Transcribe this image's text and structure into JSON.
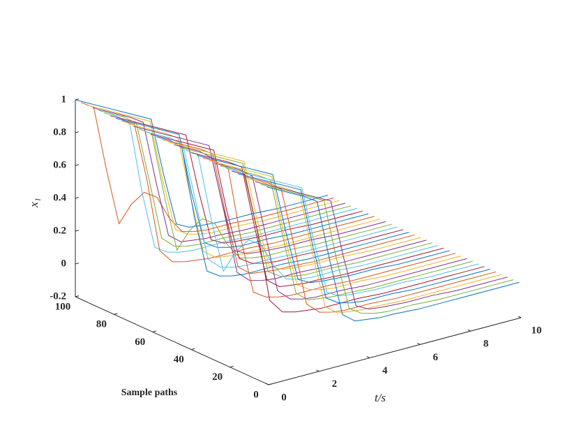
{
  "chart_data": {
    "type": "waterfall3d",
    "xlabel": "t/s",
    "ylabel": "Sample paths",
    "zlabel": "x₁",
    "xlim": [
      0,
      10
    ],
    "xticks": [
      0,
      2,
      4,
      6,
      8,
      10
    ],
    "ylim": [
      0,
      100
    ],
    "yticks": [
      0,
      20,
      40,
      60,
      80,
      100
    ],
    "zlim": [
      -0.2,
      1
    ],
    "zticks": [
      -0.2,
      0,
      0.2,
      0.4,
      0.6,
      0.8,
      1
    ],
    "x": [
      0,
      0.5,
      1,
      1.5,
      2,
      2.5,
      3,
      3.5,
      4,
      4.5,
      5,
      6,
      7,
      8,
      9,
      10
    ],
    "series": [
      {
        "depth": 100,
        "color": "#0072BD",
        "values": [
          1,
          0.96,
          0.92,
          0.88,
          0.84,
          0.8,
          0.76,
          0.4,
          0.08,
          0.04,
          0.03,
          0.02,
          0.02,
          0.01,
          0.01,
          0.01
        ]
      },
      {
        "depth": 97,
        "color": "#D95319",
        "values": [
          1,
          0.95,
          0.55,
          0.2,
          0.3,
          0.35,
          0.3,
          0.15,
          0.05,
          0.03,
          0.02,
          0.02,
          0.01,
          0.01,
          0.01,
          0.01
        ]
      },
      {
        "depth": 94,
        "color": "#EDB120",
        "values": [
          1,
          0.96,
          0.92,
          0.88,
          0.84,
          0.8,
          0.42,
          0.1,
          0.05,
          0.03,
          0.02,
          0.02,
          0.01,
          0.01,
          0.01,
          0.01
        ]
      },
      {
        "depth": 91,
        "color": "#7E2F8E",
        "values": [
          1,
          0.96,
          0.92,
          0.88,
          0.83,
          0.45,
          0.1,
          0.04,
          0.03,
          0.02,
          0.02,
          0.01,
          0.01,
          0.01,
          0.01,
          0.01
        ]
      },
      {
        "depth": 88,
        "color": "#77AC30",
        "values": [
          1,
          0.96,
          0.92,
          0.86,
          0.5,
          0.12,
          0.05,
          0.03,
          0.02,
          0.02,
          0.02,
          0.01,
          0.01,
          0.01,
          0.01,
          0.01
        ]
      },
      {
        "depth": 85,
        "color": "#4DBEEE",
        "values": [
          1,
          0.96,
          0.9,
          0.45,
          0.1,
          0.05,
          0.03,
          0.02,
          0.02,
          0.02,
          0.02,
          0.01,
          0.01,
          0.01,
          0.01,
          0.01
        ]
      },
      {
        "depth": 82,
        "color": "#A2142F",
        "values": [
          1,
          0.96,
          0.92,
          0.88,
          0.84,
          0.8,
          0.76,
          0.4,
          0.08,
          0.04,
          0.03,
          0.02,
          0.02,
          0.01,
          0.01,
          0.01
        ]
      },
      {
        "depth": 79,
        "color": "#0072BD",
        "values": [
          1,
          0.96,
          0.92,
          0.88,
          0.84,
          0.8,
          0.42,
          0.1,
          0.05,
          0.03,
          0.02,
          0.02,
          0.01,
          0.01,
          0.01,
          0.01
        ]
      },
      {
        "depth": 76,
        "color": "#D95319",
        "values": [
          1,
          0.96,
          0.6,
          0.15,
          0.06,
          0.04,
          0.03,
          0.02,
          0.02,
          0.02,
          0.02,
          0.01,
          0.01,
          0.01,
          0.01,
          0.01
        ]
      },
      {
        "depth": 73,
        "color": "#EDB120",
        "values": [
          1,
          0.96,
          0.92,
          0.88,
          0.83,
          0.45,
          0.1,
          0.04,
          0.03,
          0.02,
          0.02,
          0.01,
          0.01,
          0.01,
          0.01,
          0.01
        ]
      },
      {
        "depth": 70,
        "color": "#7E2F8E",
        "values": [
          1,
          0.96,
          0.92,
          0.88,
          0.84,
          0.8,
          0.76,
          0.4,
          0.08,
          0.04,
          0.03,
          0.02,
          0.02,
          0.01,
          0.01,
          0.01
        ]
      },
      {
        "depth": 67,
        "color": "#77AC30",
        "values": [
          1,
          0.95,
          0.55,
          0.2,
          0.3,
          0.35,
          0.3,
          0.15,
          0.05,
          0.03,
          0.02,
          0.02,
          0.01,
          0.01,
          0.01,
          0.01
        ]
      },
      {
        "depth": 64,
        "color": "#4DBEEE",
        "values": [
          1,
          0.96,
          0.92,
          0.86,
          0.5,
          0.12,
          0.05,
          0.03,
          0.02,
          0.02,
          0.02,
          0.01,
          0.01,
          0.01,
          0.01,
          0.01
        ]
      },
      {
        "depth": 61,
        "color": "#A2142F",
        "values": [
          1,
          0.96,
          0.92,
          0.88,
          0.84,
          0.8,
          0.42,
          0.1,
          0.05,
          0.03,
          0.02,
          0.02,
          0.01,
          0.01,
          0.01,
          0.01
        ]
      },
      {
        "depth": 58,
        "color": "#0072BD",
        "values": [
          1,
          0.96,
          0.9,
          0.45,
          0.1,
          0.05,
          0.03,
          0.02,
          0.02,
          0.02,
          0.02,
          0.01,
          0.01,
          0.01,
          0.01,
          0.01
        ]
      },
      {
        "depth": 55,
        "color": "#D95319",
        "values": [
          1,
          0.96,
          0.92,
          0.88,
          0.83,
          0.45,
          0.1,
          0.04,
          0.03,
          0.02,
          0.02,
          0.01,
          0.01,
          0.01,
          0.01,
          0.01
        ]
      },
      {
        "depth": 52,
        "color": "#EDB120",
        "values": [
          1,
          0.96,
          0.92,
          0.88,
          0.84,
          0.8,
          0.76,
          0.4,
          0.08,
          0.04,
          0.03,
          0.02,
          0.02,
          0.01,
          0.01,
          0.01
        ]
      },
      {
        "depth": 49,
        "color": "#7E2F8E",
        "values": [
          1,
          0.96,
          0.92,
          0.86,
          0.5,
          0.12,
          0.05,
          0.03,
          0.02,
          0.02,
          0.02,
          0.01,
          0.01,
          0.01,
          0.01,
          0.01
        ]
      },
      {
        "depth": 46,
        "color": "#77AC30",
        "values": [
          1,
          0.96,
          0.92,
          0.88,
          0.84,
          0.8,
          0.42,
          0.1,
          0.05,
          0.03,
          0.02,
          0.02,
          0.01,
          0.01,
          0.01,
          0.01
        ]
      },
      {
        "depth": 43,
        "color": "#4DBEEE",
        "values": [
          1,
          0.95,
          0.55,
          0.2,
          0.3,
          0.35,
          0.3,
          0.15,
          0.05,
          0.03,
          0.02,
          0.02,
          0.01,
          0.01,
          0.01,
          0.01
        ]
      },
      {
        "depth": 40,
        "color": "#A2142F",
        "values": [
          1,
          0.96,
          0.92,
          0.88,
          0.83,
          0.45,
          0.1,
          0.04,
          0.03,
          0.02,
          0.02,
          0.01,
          0.01,
          0.01,
          0.01,
          0.01
        ]
      },
      {
        "depth": 37,
        "color": "#0072BD",
        "values": [
          1,
          0.96,
          0.92,
          0.88,
          0.84,
          0.8,
          0.76,
          0.4,
          0.08,
          0.04,
          0.03,
          0.02,
          0.02,
          0.01,
          0.01,
          0.01
        ]
      },
      {
        "depth": 34,
        "color": "#D95319",
        "values": [
          1,
          0.96,
          0.9,
          0.45,
          0.1,
          0.05,
          0.03,
          0.02,
          0.02,
          0.02,
          0.02,
          0.01,
          0.01,
          0.01,
          0.01,
          0.01
        ]
      },
      {
        "depth": 31,
        "color": "#EDB120",
        "values": [
          1,
          0.96,
          0.92,
          0.88,
          0.84,
          0.8,
          0.42,
          0.1,
          0.05,
          0.03,
          0.02,
          0.02,
          0.01,
          0.01,
          0.01,
          0.01
        ]
      },
      {
        "depth": 28,
        "color": "#7E2F8E",
        "values": [
          1,
          0.96,
          0.92,
          0.86,
          0.5,
          0.12,
          0.05,
          0.03,
          0.02,
          0.02,
          0.02,
          0.01,
          0.01,
          0.01,
          0.01,
          0.01
        ]
      },
      {
        "depth": 25,
        "color": "#77AC30",
        "values": [
          1,
          0.96,
          0.92,
          0.88,
          0.83,
          0.45,
          0.1,
          0.04,
          0.03,
          0.02,
          0.02,
          0.01,
          0.01,
          0.01,
          0.01,
          0.01
        ]
      },
      {
        "depth": 22,
        "color": "#4DBEEE",
        "values": [
          1,
          0.96,
          0.92,
          0.88,
          0.84,
          0.8,
          0.76,
          0.4,
          0.08,
          0.04,
          0.03,
          0.02,
          0.02,
          0.01,
          0.01,
          0.01
        ]
      },
      {
        "depth": 19,
        "color": "#A2142F",
        "values": [
          1,
          0.96,
          0.6,
          0.15,
          0.06,
          0.04,
          0.03,
          0.02,
          0.02,
          0.02,
          0.02,
          0.01,
          0.01,
          0.01,
          0.01,
          0.01
        ]
      },
      {
        "depth": 16,
        "color": "#0072BD",
        "values": [
          1,
          0.96,
          0.92,
          0.88,
          0.84,
          0.8,
          0.42,
          0.1,
          0.05,
          0.03,
          0.02,
          0.02,
          0.01,
          0.01,
          0.01,
          0.01
        ]
      },
      {
        "depth": 13,
        "color": "#D95319",
        "values": [
          1,
          0.96,
          0.92,
          0.86,
          0.5,
          0.12,
          0.05,
          0.03,
          0.02,
          0.02,
          0.02,
          0.01,
          0.01,
          0.01,
          0.01,
          0.01
        ]
      },
      {
        "depth": 10,
        "color": "#EDB120",
        "values": [
          1,
          0.96,
          0.92,
          0.88,
          0.83,
          0.45,
          0.1,
          0.04,
          0.03,
          0.02,
          0.02,
          0.01,
          0.01,
          0.01,
          0.01,
          0.01
        ]
      },
      {
        "depth": 7,
        "color": "#7E2F8E",
        "values": [
          1,
          0.96,
          0.92,
          0.88,
          0.84,
          0.8,
          0.76,
          0.4,
          0.08,
          0.04,
          0.03,
          0.02,
          0.02,
          0.01,
          0.01,
          0.01
        ]
      },
      {
        "depth": 4,
        "color": "#77AC30",
        "values": [
          1,
          0.96,
          0.92,
          0.88,
          0.84,
          0.8,
          0.42,
          0.1,
          0.05,
          0.03,
          0.02,
          0.02,
          0.01,
          0.01,
          0.01,
          0.01
        ]
      },
      {
        "depth": 1,
        "color": "#0072BD",
        "values": [
          1,
          0.96,
          0.92,
          0.88,
          0.83,
          0.45,
          0.1,
          0.04,
          0.03,
          0.02,
          0.02,
          0.01,
          0.01,
          0.01,
          0.01,
          0.01
        ]
      }
    ]
  }
}
